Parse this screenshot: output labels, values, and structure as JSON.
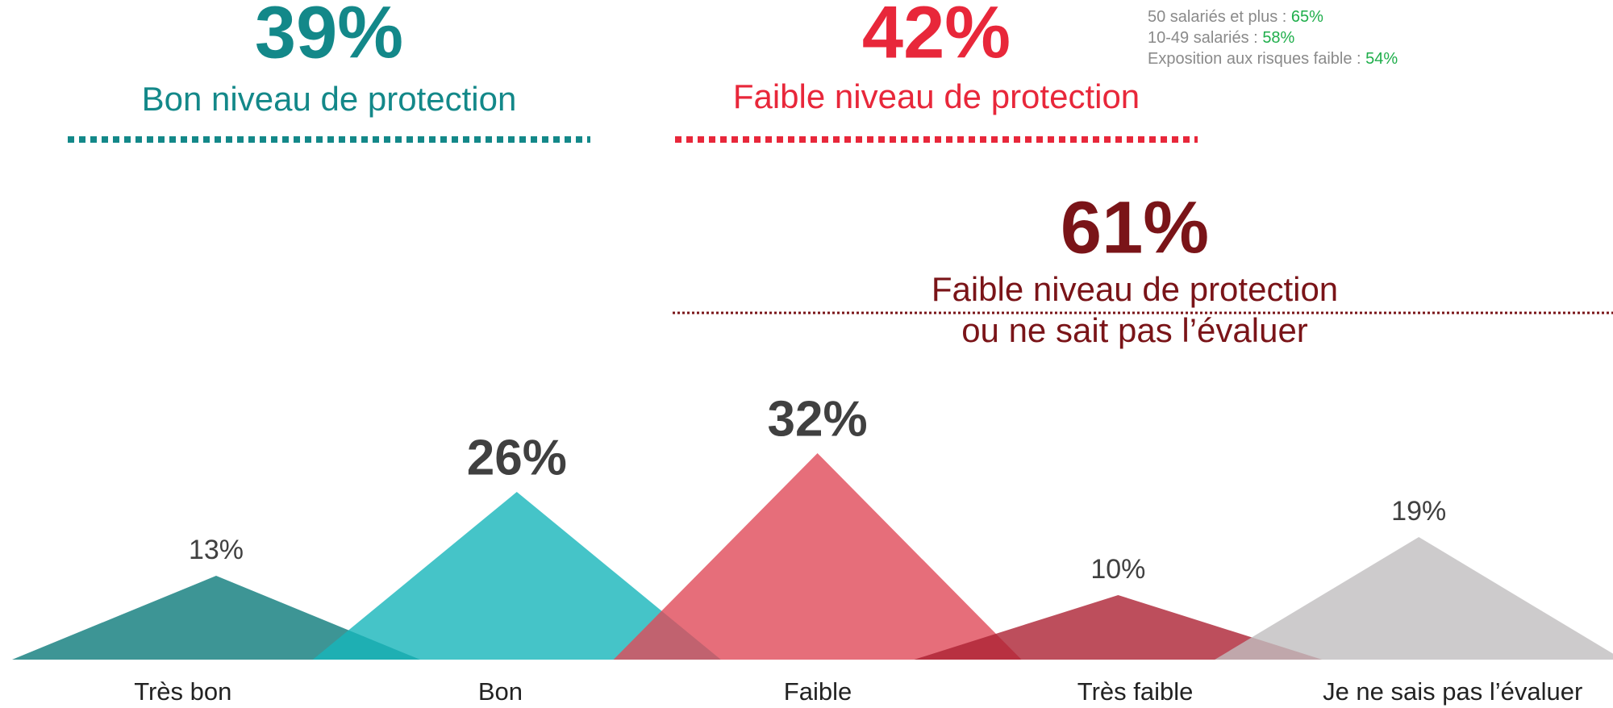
{
  "chart_data": {
    "type": "peak",
    "categories": [
      "Très bon",
      "Bon",
      "Faible",
      "Très faible",
      "Je ne sais pas l’évaluer"
    ],
    "values": [
      13,
      26,
      32,
      10,
      19
    ],
    "value_labels": [
      "13%",
      "26%",
      "32%",
      "10%",
      "19%"
    ],
    "emphasis": [
      false,
      true,
      true,
      false,
      false
    ],
    "colors": [
      "#0c7a7a",
      "#16b5ba",
      "#e04a59",
      "#ad2233",
      "#c0bebf"
    ],
    "summaries": [
      {
        "value_label": "39%",
        "label": "Bon niveau de protection",
        "color": "#138889"
      },
      {
        "value_label": "42%",
        "label": "Faible niveau de protection",
        "color": "#e8273a"
      },
      {
        "value_label": "61%",
        "label": [
          "Faible niveau de protection",
          "ou ne sait pas l’évaluer"
        ],
        "color": "#7a1418"
      }
    ],
    "annotations": [
      {
        "label": "50 salariés et plus :",
        "value_label": "65%"
      },
      {
        "label": "10-49 salariés :",
        "value_label": "58%"
      },
      {
        "label": "Exposition aux risques faible :",
        "value_label": "54%"
      }
    ]
  }
}
